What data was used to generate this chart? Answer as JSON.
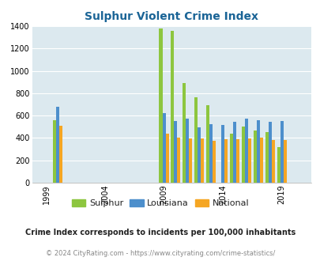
{
  "title": "Sulphur Violent Crime Index",
  "subtitle": "Crime Index corresponds to incidents per 100,000 inhabitants",
  "footer": "© 2024 CityRating.com - https://www.cityrating.com/crime-statistics/",
  "years": [
    2000,
    2009,
    2010,
    2011,
    2012,
    2013,
    2014,
    2015,
    2016,
    2017,
    2018,
    2019
  ],
  "sulphur": [
    560,
    1380,
    1360,
    890,
    765,
    690,
    0,
    440,
    500,
    470,
    450,
    320
  ],
  "louisiana": [
    680,
    620,
    555,
    570,
    495,
    520,
    515,
    545,
    575,
    560,
    545,
    555
  ],
  "national": [
    510,
    435,
    405,
    395,
    395,
    375,
    390,
    390,
    395,
    400,
    385,
    380
  ],
  "xtick_labels": [
    "1999",
    "2004",
    "2009",
    "2014",
    "2019"
  ],
  "xtick_positions": [
    1999,
    2004,
    2009,
    2014,
    2019
  ],
  "ylim": [
    0,
    1400
  ],
  "yticks": [
    0,
    200,
    400,
    600,
    800,
    1000,
    1200,
    1400
  ],
  "color_sulphur": "#8dc63f",
  "color_louisiana": "#4d8fcc",
  "color_national": "#f5a623",
  "bg_color": "#dce9ef",
  "title_color": "#1a6496",
  "legend_sulphur": "Sulphur",
  "legend_louisiana": "Louisiana",
  "legend_national": "National",
  "bar_width": 0.27
}
